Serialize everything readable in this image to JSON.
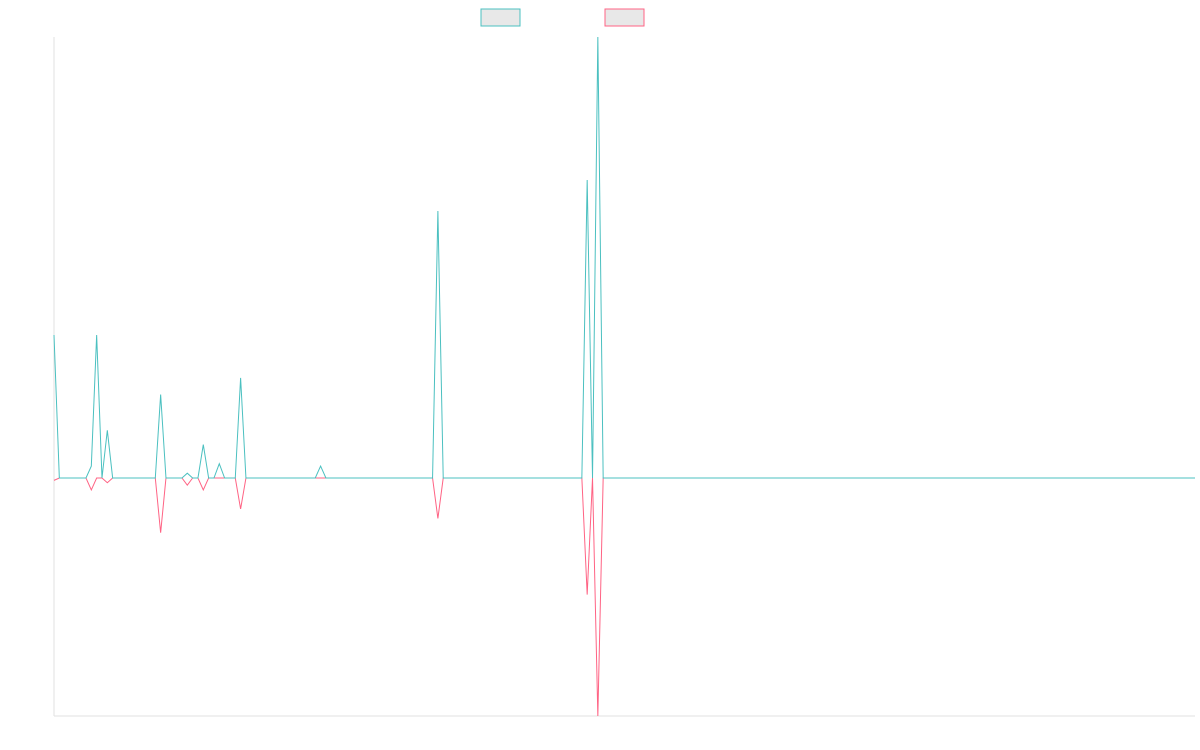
{
  "chart_data": {
    "type": "line",
    "title": "",
    "xlabel": "",
    "ylabel": "",
    "ylim": [
      -100,
      100
    ],
    "legend": {
      "placement": "top-center",
      "entries": [
        {
          "name": "",
          "border_color": "#4bc0c0",
          "fill_color": "#e8e8e8"
        },
        {
          "name": "",
          "border_color": "#ff6384",
          "fill_color": "#e8e8e8"
        }
      ]
    },
    "x_count": 215,
    "baseline": 0,
    "series": [
      {
        "name": "",
        "color": "#4bc0c0",
        "spikes": [
          {
            "x": 0,
            "value": 60
          },
          {
            "x": 7,
            "value": 5
          },
          {
            "x": 8,
            "value": 60
          },
          {
            "x": 10,
            "value": 20
          },
          {
            "x": 20,
            "value": 35
          },
          {
            "x": 25,
            "value": 2
          },
          {
            "x": 28,
            "value": 14
          },
          {
            "x": 31,
            "value": 6
          },
          {
            "x": 35,
            "value": 42
          },
          {
            "x": 50,
            "value": 5
          },
          {
            "x": 72,
            "value": 112
          },
          {
            "x": 100,
            "value": 125
          },
          {
            "x": 102,
            "value": 185
          }
        ]
      },
      {
        "name": "",
        "color": "#ff6384",
        "spikes": [
          {
            "x": 0,
            "value": -1
          },
          {
            "x": 7,
            "value": -5
          },
          {
            "x": 10,
            "value": -2
          },
          {
            "x": 20,
            "value": -23
          },
          {
            "x": 25,
            "value": -3
          },
          {
            "x": 28,
            "value": -5
          },
          {
            "x": 35,
            "value": -13
          },
          {
            "x": 72,
            "value": -17
          },
          {
            "x": 100,
            "value": -49
          },
          {
            "x": 102,
            "value": -100
          }
        ]
      }
    ]
  }
}
